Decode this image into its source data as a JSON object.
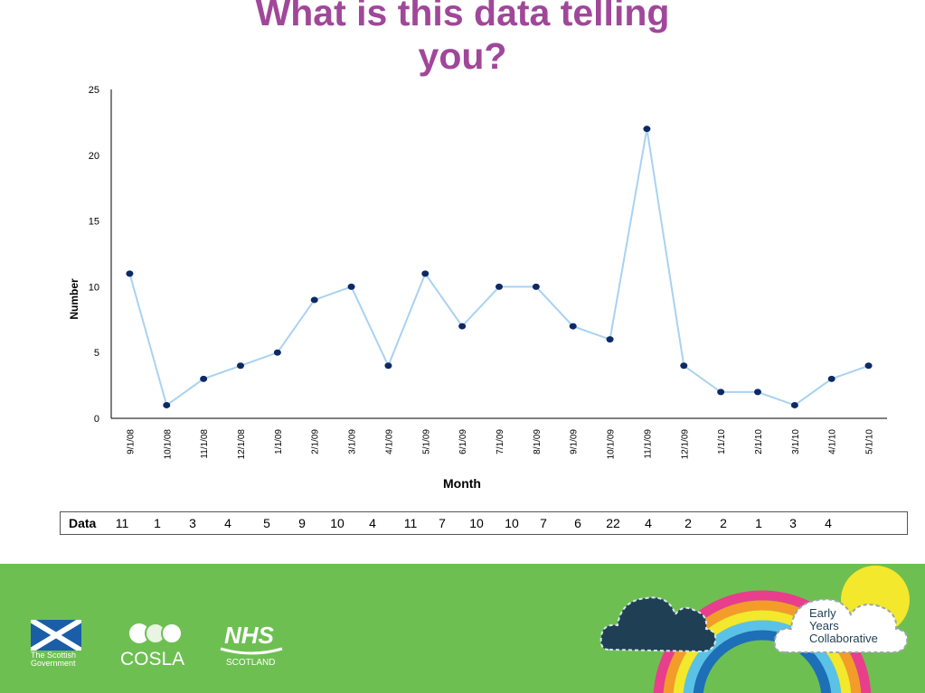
{
  "title_line1": "What is this data telling",
  "title_line2": "you?",
  "chart_data": {
    "type": "line",
    "xlabel": "Month",
    "ylabel": "Number",
    "ylim": [
      0,
      25
    ],
    "yticks": [
      0,
      5,
      10,
      15,
      20,
      25
    ],
    "grid": false,
    "x": [
      "9/1/08",
      "10/1/08",
      "11/1/08",
      "12/1/08",
      "1/1/09",
      "2/1/09",
      "3/1/09",
      "4/1/09",
      "5/1/09",
      "6/1/09",
      "7/1/09",
      "8/1/09",
      "9/1/09",
      "10/1/09",
      "11/1/09",
      "12/1/09",
      "1/1/10",
      "2/1/10",
      "3/1/10",
      "4/1/10",
      "5/1/10"
    ],
    "series": [
      {
        "values": [
          11,
          1,
          3,
          4,
          5,
          9,
          10,
          4,
          11,
          7,
          10,
          10,
          7,
          6,
          22,
          4,
          2,
          2,
          1,
          3,
          4
        ]
      }
    ],
    "colors": {
      "line": "#a9d2f2",
      "marker": "#0d2a66"
    }
  },
  "table": {
    "label": "Data",
    "values": [
      "11",
      "1",
      "3",
      "4",
      "5",
      "9",
      "10",
      "4",
      "11",
      "7",
      "10",
      "10",
      "7",
      "6",
      "22",
      "4",
      "2",
      "2",
      "1",
      "3",
      "4"
    ]
  },
  "footer": {
    "background": "#6ebf52",
    "logos": {
      "scottish_gov_line1": "The Scottish",
      "scottish_gov_line2": "Government",
      "cosla": "COSLA",
      "nhs": "NHS",
      "nhs_sub": "SCOTLAND",
      "eyc_line1": "Early",
      "eyc_line2": "Years",
      "eyc_line3": "Collaborative"
    }
  }
}
